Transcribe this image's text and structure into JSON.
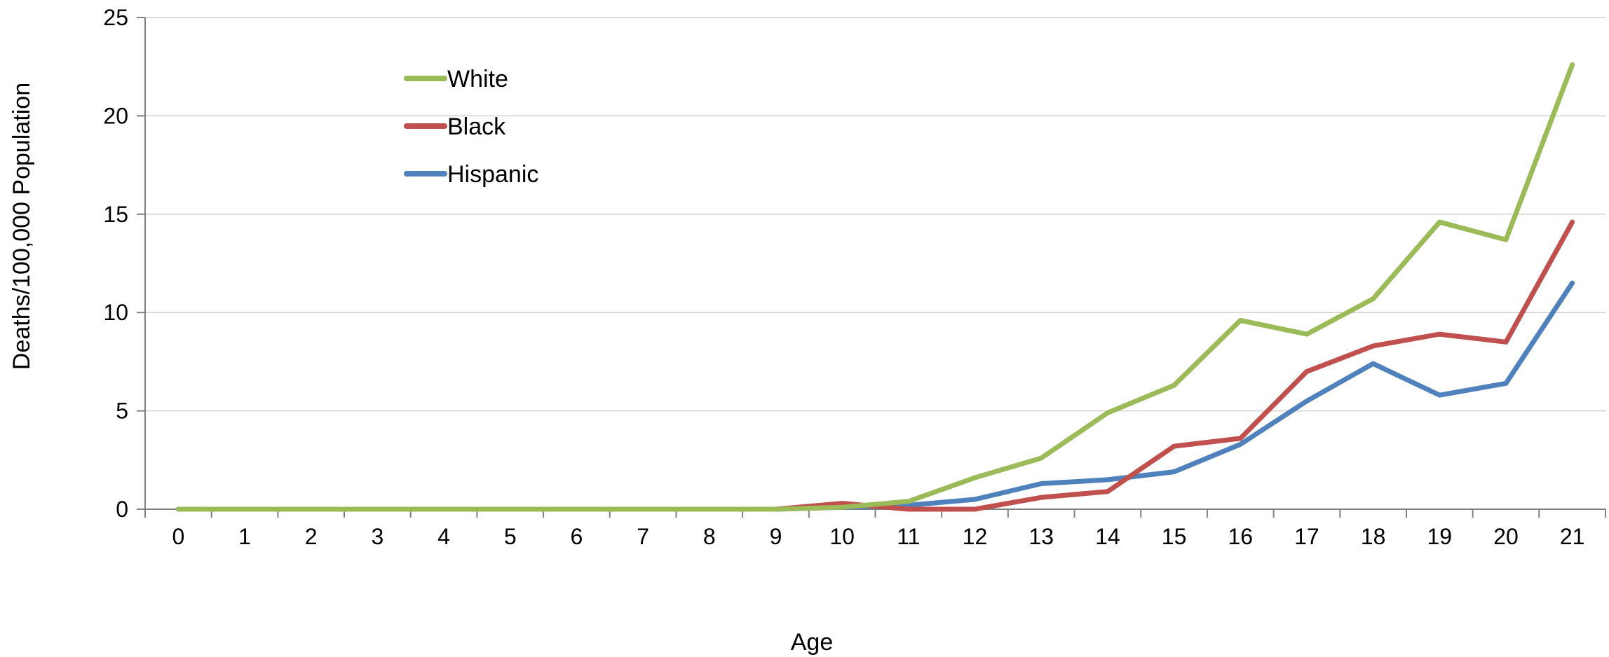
{
  "chart_data": {
    "type": "line",
    "title": "",
    "xlabel": "Age",
    "ylabel": "Deaths/100,000 Population",
    "categories": [
      "0",
      "1",
      "2",
      "3",
      "4",
      "5",
      "6",
      "7",
      "8",
      "9",
      "10",
      "11",
      "12",
      "13",
      "14",
      "15",
      "16",
      "17",
      "18",
      "19",
      "20",
      "21"
    ],
    "ylim": [
      0,
      25
    ],
    "yticks": [
      "0",
      "5",
      "10",
      "15",
      "20",
      "25"
    ],
    "grid": true,
    "legend": "top-left",
    "series": [
      {
        "name": "White",
        "color": "#9bbb59",
        "values": [
          0,
          0,
          0,
          0,
          0,
          0,
          0,
          0,
          0,
          0,
          0.1,
          0.4,
          1.6,
          2.6,
          4.9,
          6.3,
          9.6,
          8.9,
          10.7,
          14.6,
          13.7,
          22.6
        ]
      },
      {
        "name": "Black",
        "color": "#c0504d",
        "values": [
          0,
          0,
          0,
          0,
          0,
          0,
          0,
          0,
          0,
          0,
          0.3,
          0,
          0,
          0.6,
          0.9,
          3.2,
          3.6,
          7.0,
          8.3,
          8.9,
          8.5,
          14.6
        ]
      },
      {
        "name": "Hispanic",
        "color": "#4f81bd",
        "values": [
          0,
          0,
          0,
          0,
          0,
          0,
          0,
          0,
          0,
          0,
          0.1,
          0.2,
          0.5,
          1.3,
          1.5,
          1.9,
          3.3,
          5.5,
          7.4,
          5.8,
          6.4,
          11.5
        ]
      }
    ]
  }
}
